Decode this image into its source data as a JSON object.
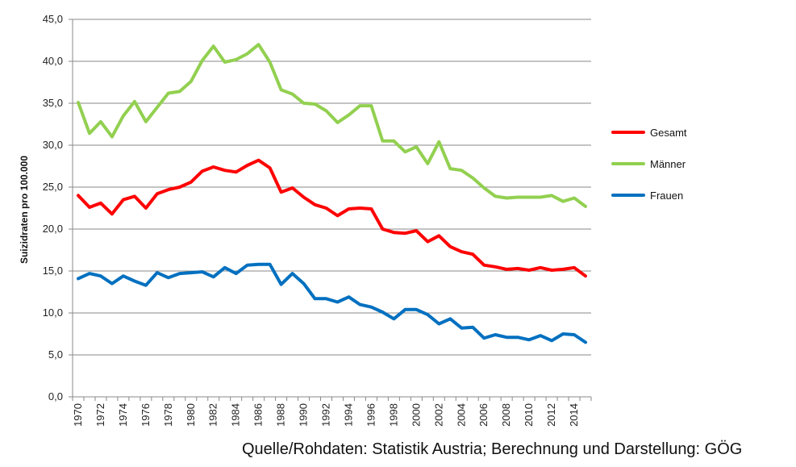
{
  "source_note": "Quelle/Rohdaten: Statistik Austria; Berechnung und Darstellung: GÖG",
  "chart_data": {
    "type": "line",
    "title": "",
    "xlabel": "",
    "ylabel": "Suizidraten pro 100.000",
    "ylim": [
      0,
      45
    ],
    "yticks": [
      "0,0",
      "5,0",
      "10,0",
      "15,0",
      "20,0",
      "25,0",
      "30,0",
      "35,0",
      "40,0",
      "45,0"
    ],
    "grid": "horizontal",
    "legend_position": "right",
    "x": [
      1970,
      1971,
      1972,
      1973,
      1974,
      1975,
      1976,
      1977,
      1978,
      1979,
      1980,
      1981,
      1982,
      1983,
      1984,
      1985,
      1986,
      1987,
      1988,
      1989,
      1990,
      1991,
      1992,
      1993,
      1994,
      1995,
      1996,
      1997,
      1998,
      1999,
      2000,
      2001,
      2002,
      2003,
      2004,
      2005,
      2006,
      2007,
      2008,
      2009,
      2010,
      2011,
      2012,
      2013,
      2014,
      2015
    ],
    "xtick_labels": [
      "1970",
      "1972",
      "1974",
      "1976",
      "1978",
      "1980",
      "1982",
      "1984",
      "1986",
      "1988",
      "1990",
      "1992",
      "1994",
      "1996",
      "1998",
      "2000",
      "2002",
      "2004",
      "2006",
      "2008",
      "2010",
      "2012",
      "2014"
    ],
    "series": [
      {
        "name": "Gesamt",
        "color": "#ff0000",
        "values": [
          24.0,
          22.6,
          23.1,
          21.8,
          23.5,
          23.9,
          22.5,
          24.2,
          24.7,
          25.0,
          25.6,
          26.9,
          27.4,
          27.0,
          26.8,
          27.6,
          28.2,
          27.3,
          24.4,
          24.9,
          23.8,
          22.9,
          22.5,
          21.6,
          22.4,
          22.5,
          22.4,
          20.0,
          19.6,
          19.5,
          19.8,
          18.5,
          19.2,
          17.9,
          17.3,
          17.0,
          15.7,
          15.5,
          15.2,
          15.3,
          15.1,
          15.4,
          15.1,
          15.2,
          15.4,
          14.4
        ]
      },
      {
        "name": "Männer",
        "color": "#92d050",
        "values": [
          35.1,
          31.4,
          32.8,
          31.0,
          33.5,
          35.2,
          32.8,
          34.5,
          36.2,
          36.4,
          37.6,
          40.1,
          41.8,
          39.9,
          40.2,
          40.9,
          42.0,
          39.9,
          36.6,
          36.1,
          35.0,
          34.9,
          34.1,
          32.7,
          33.6,
          34.7,
          34.7,
          30.5,
          30.5,
          29.2,
          29.8,
          27.8,
          30.4,
          27.2,
          27.0,
          26.1,
          24.9,
          23.9,
          23.7,
          23.8,
          23.8,
          23.8,
          24.0,
          23.3,
          23.7,
          22.7
        ]
      },
      {
        "name": "Frauen",
        "color": "#0070c0",
        "values": [
          14.1,
          14.7,
          14.4,
          13.5,
          14.4,
          13.8,
          13.3,
          14.8,
          14.2,
          14.7,
          14.8,
          14.9,
          14.3,
          15.4,
          14.7,
          15.7,
          15.8,
          15.8,
          13.4,
          14.7,
          13.5,
          11.7,
          11.7,
          11.3,
          11.9,
          11.0,
          10.7,
          10.1,
          9.3,
          10.4,
          10.4,
          9.8,
          8.7,
          9.3,
          8.2,
          8.3,
          7.0,
          7.4,
          7.1,
          7.1,
          6.8,
          7.3,
          6.7,
          7.5,
          7.4,
          6.5
        ]
      }
    ]
  }
}
